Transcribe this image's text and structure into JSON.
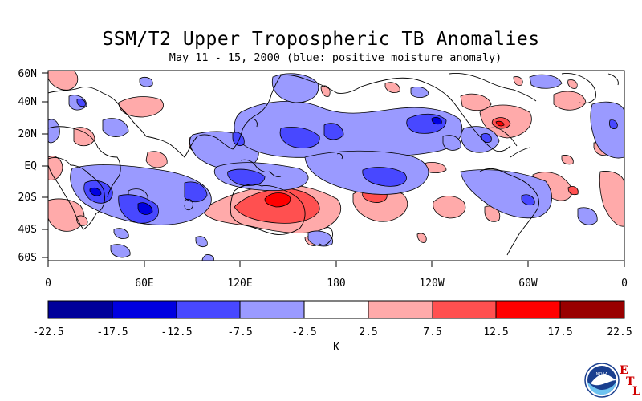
{
  "title": "SSM/T2 Upper Tropospheric TB Anomalies",
  "subtitle": "May 11 - 15, 2000 (blue: positive moisture anomaly)",
  "map": {
    "lat_labels": [
      "60N",
      "40N",
      "20N",
      "EQ",
      "20S",
      "40S",
      "60S"
    ],
    "lon_labels": [
      "0",
      "60E",
      "120E",
      "180",
      "120W",
      "60W",
      "0"
    ]
  },
  "colorbar": {
    "unit": "K",
    "tick_labels": [
      "-22.5",
      "-17.5",
      "-12.5",
      "-7.5",
      "-2.5",
      "2.5",
      "7.5",
      "12.5",
      "17.5",
      "22.5"
    ],
    "colors": [
      "#00009a",
      "#0000e0",
      "#4848ff",
      "#9a9aff",
      "#ffffff",
      "#ffaaaa",
      "#ff5050",
      "#ff0000",
      "#990000"
    ]
  },
  "logo": {
    "text": "NOAA",
    "etl": [
      "E",
      "T",
      "L"
    ],
    "icon": "noaa-logo-icon"
  },
  "field_colors": {
    "neg1": "#9a9aff",
    "neg2": "#4848ff",
    "neg3": "#0000e0",
    "pos1": "#ffaaaa",
    "pos2": "#ff5050",
    "pos3": "#ff0000"
  }
}
